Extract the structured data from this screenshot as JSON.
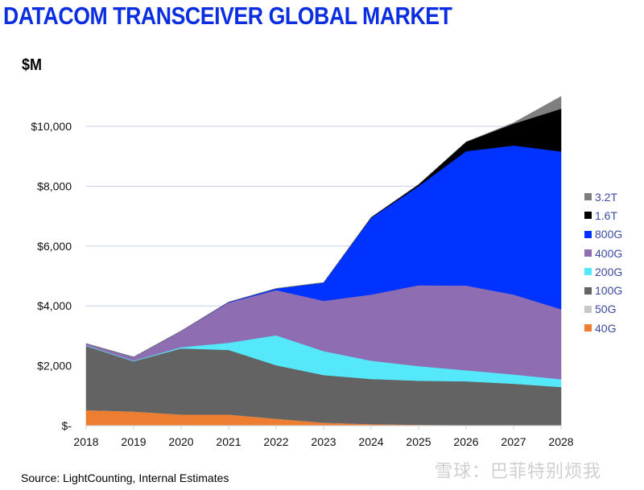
{
  "chart_data": {
    "type": "area",
    "stacked": true,
    "title": "DATACOM TRANSCEIVER GLOBAL MARKET",
    "ylabel": "$M",
    "xlabel": "",
    "ylim": [
      0,
      11000
    ],
    "yticks": [
      0,
      2000,
      4000,
      6000,
      8000,
      10000
    ],
    "ytick_labels": [
      "$-",
      "$2,000",
      "$4,000",
      "$6,000",
      "$8,000",
      "$10,000"
    ],
    "grid": "horizontal",
    "legend_position": "right",
    "categories": [
      "2018",
      "2019",
      "2020",
      "2021",
      "2022",
      "2023",
      "2024",
      "2025",
      "2026",
      "2027",
      "2028"
    ],
    "series": [
      {
        "name": "40G",
        "color": "#ed7d31",
        "values": [
          520,
          470,
          370,
          370,
          230,
          100,
          50,
          30,
          20,
          20,
          20
        ]
      },
      {
        "name": "50G",
        "color": "#c9c9c9",
        "values": [
          0,
          0,
          0,
          0,
          0,
          0,
          0,
          0,
          0,
          0,
          0
        ]
      },
      {
        "name": "100G",
        "color": "#636363",
        "values": [
          2140,
          1680,
          2210,
          2160,
          1790,
          1590,
          1510,
          1470,
          1460,
          1380,
          1270
        ]
      },
      {
        "name": "200G",
        "color": "#55e8fa",
        "values": [
          20,
          20,
          40,
          240,
          1000,
          800,
          610,
          490,
          370,
          310,
          260
        ]
      },
      {
        "name": "400G",
        "color": "#8e6db3",
        "values": [
          60,
          120,
          540,
          1340,
          1510,
          1680,
          2210,
          2700,
          2830,
          2670,
          2340
        ]
      },
      {
        "name": "800G",
        "color": "#0033ff",
        "values": [
          0,
          0,
          0,
          20,
          50,
          610,
          2560,
          3310,
          4490,
          4980,
          5270
        ]
      },
      {
        "name": "1.6T",
        "color": "#000000",
        "values": [
          0,
          0,
          0,
          0,
          0,
          0,
          20,
          60,
          310,
          730,
          1430
        ]
      },
      {
        "name": "3.2T",
        "color": "#7f7f7f",
        "values": [
          0,
          0,
          0,
          0,
          0,
          0,
          0,
          0,
          0,
          30,
          410
        ]
      }
    ]
  },
  "header": {
    "title": "DATACOM TRANSCEIVER GLOBAL MARKET",
    "unit": "$M"
  },
  "legend": [
    {
      "label": "3.2T",
      "color": "#7f7f7f"
    },
    {
      "label": "1.6T",
      "color": "#000000"
    },
    {
      "label": "800G",
      "color": "#0033ff"
    },
    {
      "label": "400G",
      "color": "#8e6db3"
    },
    {
      "label": "200G",
      "color": "#55e8fa"
    },
    {
      "label": "100G",
      "color": "#636363"
    },
    {
      "label": "50G",
      "color": "#c9c9c9"
    },
    {
      "label": "40G",
      "color": "#ed7d31"
    }
  ],
  "footer": {
    "source": "Source: LightCounting, Internal Estimates",
    "watermark": "雪球：巴菲特别烦我"
  }
}
